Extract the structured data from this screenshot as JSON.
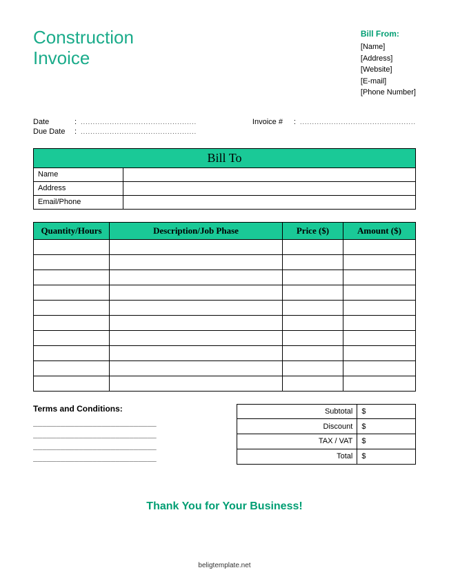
{
  "title": {
    "line1": "Construction",
    "line2": "Invoice"
  },
  "billFrom": {
    "heading": "Bill From:",
    "fields": [
      "[Name]",
      "[Address]",
      "[Website]",
      "[E-mail]",
      "[Phone Number]"
    ]
  },
  "meta": {
    "date_label": "Date",
    "duedate_label": "Due Date",
    "invoice_label": "Invoice #",
    "dots": "................................................"
  },
  "billTo": {
    "heading": "Bill To",
    "rows": [
      {
        "label": "Name",
        "value": ""
      },
      {
        "label": "Address",
        "value": ""
      },
      {
        "label": "Email/Phone",
        "value": ""
      }
    ]
  },
  "items": {
    "columns": [
      "Quantity/Hours",
      "Description/Job Phase",
      "Price ($)",
      "Amount ($)"
    ],
    "num_blank_rows": 10
  },
  "terms": {
    "heading": "Terms and Conditions:",
    "blank_line": "___________________________"
  },
  "totals": {
    "rows": [
      {
        "label": "Subtotal",
        "value": "$"
      },
      {
        "label": "Discount",
        "value": "$"
      },
      {
        "label": "TAX / VAT",
        "value": "$"
      },
      {
        "label": "Total",
        "value": "$"
      }
    ]
  },
  "thankyou": "Thank You for Your Business!",
  "footer": "beligtemplate.net",
  "colors": {
    "accent": "#1ac997",
    "title": "#1aab8a",
    "heading_green": "#009e73"
  }
}
